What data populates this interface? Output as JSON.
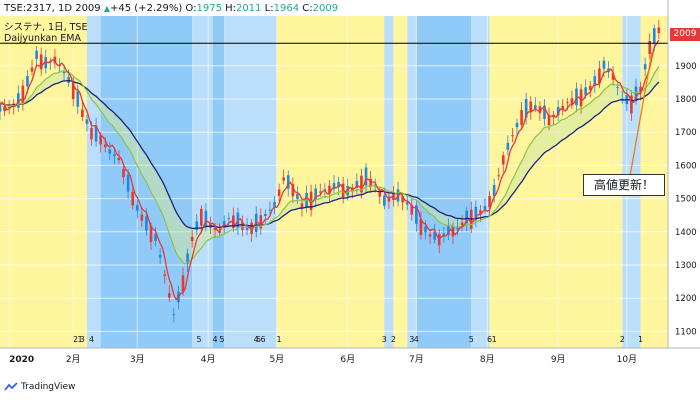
{
  "header": {
    "symbol": "TSE:2317, 1D",
    "close_price": "2009",
    "change_arrow": "▲",
    "change": "+45 (+2.29%)",
    "o_label": "O:",
    "o_value": "1975",
    "h_label": "H:",
    "h_value": "2011",
    "l_label": "L:",
    "l_value": "1964",
    "c_label": "C:",
    "c_value": "2009"
  },
  "legend": {
    "name_line": "システナ, 1日, TSE",
    "indicator": "Daijyunkan EMA"
  },
  "price_badge": "2009",
  "callout_text": "高値更新！",
  "brand_text": "TradingView",
  "colors": {
    "up_candle": "#1e88e5",
    "down_candle": "#e53935",
    "ema_short": "#e53935",
    "ema_mid": "#8bc34a",
    "ema_long": "#1a237e",
    "zone_yellow": "#fff59d",
    "zone_light_blue": "#bbdefb",
    "zone_blue": "#90caf9",
    "arrow": "#f57c00"
  },
  "chart_data": {
    "type": "candlestick",
    "ylim": [
      1050,
      2050
    ],
    "price_ticks": [
      1100,
      1200,
      1300,
      1400,
      1500,
      1600,
      1700,
      1800,
      1900,
      2009
    ],
    "price_tick_labels": [
      "1100",
      "1200",
      "1300",
      "1400",
      "1500",
      "1600",
      "1700",
      "1800",
      "1900",
      "2009"
    ],
    "horizontal_line": 1968,
    "x_axis_labels": [
      "2020",
      "2月",
      "3月",
      "4月",
      "5月",
      "6月",
      "7月",
      "8月",
      "9月",
      "10月"
    ],
    "x_axis_label_days": [
      4,
      32,
      60,
      91,
      121,
      152,
      182,
      213,
      244,
      274
    ],
    "stage_markers": [
      {
        "day": 33,
        "label": "2"
      },
      {
        "day": 35,
        "label": "1"
      },
      {
        "day": 36,
        "label": "3"
      },
      {
        "day": 40,
        "label": "4"
      },
      {
        "day": 87,
        "label": "5"
      },
      {
        "day": 94,
        "label": "4"
      },
      {
        "day": 97,
        "label": "5"
      },
      {
        "day": 112,
        "label": "4"
      },
      {
        "day": 113,
        "label": "5"
      },
      {
        "day": 115,
        "label": "6"
      },
      {
        "day": 122,
        "label": "1"
      },
      {
        "day": 168,
        "label": "3"
      },
      {
        "day": 172,
        "label": "2"
      },
      {
        "day": 180,
        "label": "3"
      },
      {
        "day": 182,
        "label": "4"
      },
      {
        "day": 206,
        "label": "5"
      },
      {
        "day": 214,
        "label": "6"
      },
      {
        "day": 216,
        "label": "1"
      },
      {
        "day": 272,
        "label": "2"
      },
      {
        "day": 280,
        "label": "1"
      }
    ],
    "zones": [
      {
        "from": 0,
        "to": 38,
        "stage": "yellow"
      },
      {
        "from": 38,
        "to": 44,
        "stage": "light_blue"
      },
      {
        "from": 44,
        "to": 84,
        "stage": "blue"
      },
      {
        "from": 84,
        "to": 93,
        "stage": "light_blue"
      },
      {
        "from": 93,
        "to": 98,
        "stage": "blue"
      },
      {
        "from": 98,
        "to": 121,
        "stage": "light_blue"
      },
      {
        "from": 121,
        "to": 168,
        "stage": "yellow"
      },
      {
        "from": 168,
        "to": 172,
        "stage": "light_blue"
      },
      {
        "from": 172,
        "to": 178,
        "stage": "yellow"
      },
      {
        "from": 178,
        "to": 182,
        "stage": "light_blue"
      },
      {
        "from": 182,
        "to": 206,
        "stage": "blue"
      },
      {
        "from": 206,
        "to": 214,
        "stage": "light_blue"
      },
      {
        "from": 214,
        "to": 272,
        "stage": "yellow"
      },
      {
        "from": 272,
        "to": 280,
        "stage": "light_blue"
      },
      {
        "from": 280,
        "to": 292,
        "stage": "yellow"
      }
    ],
    "close_series": [
      {
        "day": 0,
        "v": 1770
      },
      {
        "day": 4,
        "v": 1775
      },
      {
        "day": 8,
        "v": 1790
      },
      {
        "day": 12,
        "v": 1850
      },
      {
        "day": 16,
        "v": 1930
      },
      {
        "day": 20,
        "v": 1905
      },
      {
        "day": 24,
        "v": 1920
      },
      {
        "day": 28,
        "v": 1880
      },
      {
        "day": 32,
        "v": 1830
      },
      {
        "day": 36,
        "v": 1760
      },
      {
        "day": 40,
        "v": 1700
      },
      {
        "day": 44,
        "v": 1680
      },
      {
        "day": 48,
        "v": 1640
      },
      {
        "day": 52,
        "v": 1620
      },
      {
        "day": 56,
        "v": 1540
      },
      {
        "day": 60,
        "v": 1470
      },
      {
        "day": 64,
        "v": 1420
      },
      {
        "day": 68,
        "v": 1380
      },
      {
        "day": 72,
        "v": 1270
      },
      {
        "day": 76,
        "v": 1150
      },
      {
        "day": 80,
        "v": 1250
      },
      {
        "day": 84,
        "v": 1380
      },
      {
        "day": 88,
        "v": 1450
      },
      {
        "day": 92,
        "v": 1420
      },
      {
        "day": 96,
        "v": 1400
      },
      {
        "day": 100,
        "v": 1440
      },
      {
        "day": 104,
        "v": 1430
      },
      {
        "day": 108,
        "v": 1410
      },
      {
        "day": 112,
        "v": 1420
      },
      {
        "day": 116,
        "v": 1450
      },
      {
        "day": 120,
        "v": 1480
      },
      {
        "day": 124,
        "v": 1560
      },
      {
        "day": 128,
        "v": 1530
      },
      {
        "day": 132,
        "v": 1480
      },
      {
        "day": 136,
        "v": 1500
      },
      {
        "day": 140,
        "v": 1520
      },
      {
        "day": 144,
        "v": 1530
      },
      {
        "day": 148,
        "v": 1540
      },
      {
        "day": 152,
        "v": 1520
      },
      {
        "day": 156,
        "v": 1540
      },
      {
        "day": 160,
        "v": 1560
      },
      {
        "day": 164,
        "v": 1540
      },
      {
        "day": 168,
        "v": 1490
      },
      {
        "day": 172,
        "v": 1510
      },
      {
        "day": 176,
        "v": 1500
      },
      {
        "day": 180,
        "v": 1470
      },
      {
        "day": 184,
        "v": 1420
      },
      {
        "day": 188,
        "v": 1390
      },
      {
        "day": 192,
        "v": 1380
      },
      {
        "day": 196,
        "v": 1400
      },
      {
        "day": 200,
        "v": 1410
      },
      {
        "day": 204,
        "v": 1440
      },
      {
        "day": 208,
        "v": 1450
      },
      {
        "day": 212,
        "v": 1470
      },
      {
        "day": 216,
        "v": 1520
      },
      {
        "day": 220,
        "v": 1620
      },
      {
        "day": 224,
        "v": 1690
      },
      {
        "day": 228,
        "v": 1750
      },
      {
        "day": 232,
        "v": 1780
      },
      {
        "day": 236,
        "v": 1770
      },
      {
        "day": 240,
        "v": 1740
      },
      {
        "day": 244,
        "v": 1760
      },
      {
        "day": 248,
        "v": 1790
      },
      {
        "day": 252,
        "v": 1800
      },
      {
        "day": 256,
        "v": 1820
      },
      {
        "day": 260,
        "v": 1850
      },
      {
        "day": 264,
        "v": 1900
      },
      {
        "day": 268,
        "v": 1870
      },
      {
        "day": 272,
        "v": 1800
      },
      {
        "day": 276,
        "v": 1790
      },
      {
        "day": 280,
        "v": 1830
      },
      {
        "day": 284,
        "v": 1960
      },
      {
        "day": 288,
        "v": 2009
      }
    ]
  }
}
